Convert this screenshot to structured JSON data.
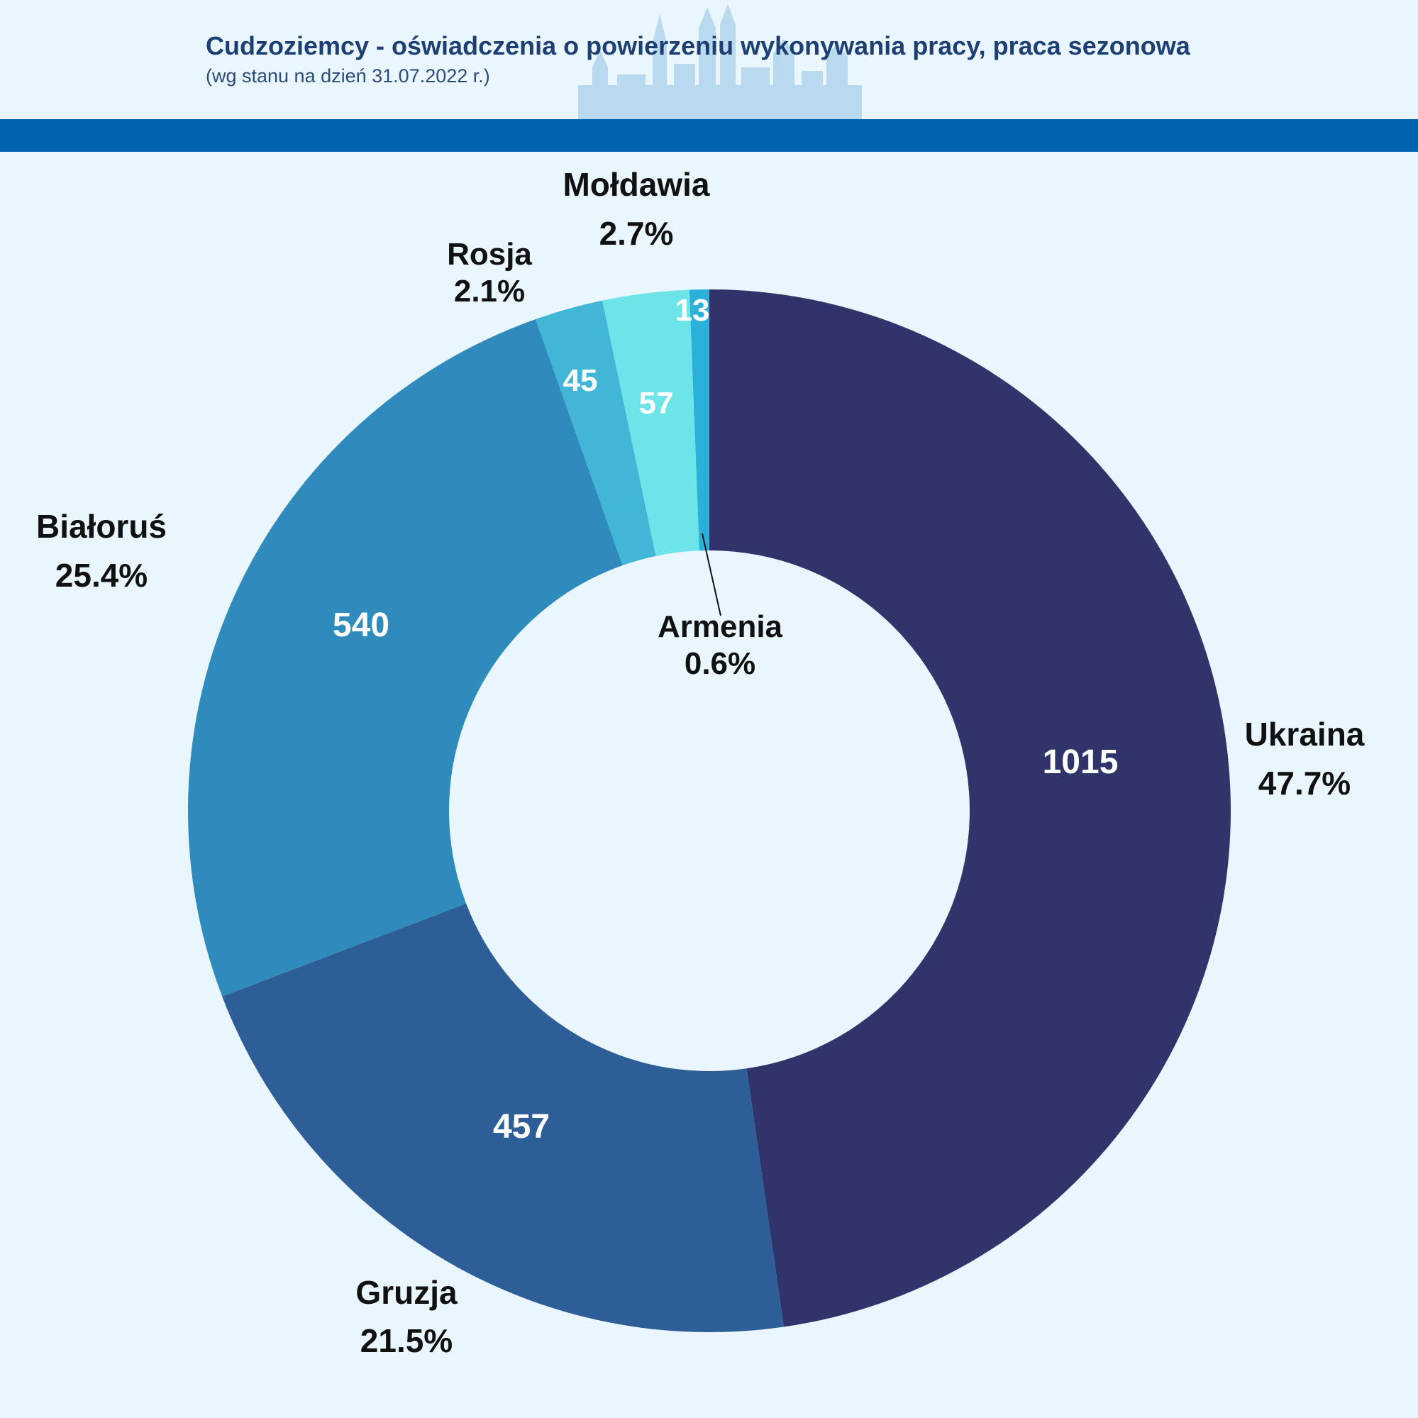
{
  "header": {
    "title": "Cudzoziemcy - oświadczenia o powierzeniu wykonywania pracy, praca sezonowa",
    "subtitle": "(wg stanu na dzień 31.07.2022 r.)"
  },
  "colors": {
    "background": "#eaf6fd",
    "band": "#0064b0",
    "title": "#1d3f73"
  },
  "chart_data": {
    "type": "pie",
    "donut": true,
    "title": "",
    "slices": [
      {
        "name": "Ukraina",
        "value": 1015,
        "percent": "47.7%",
        "color": "#30346b"
      },
      {
        "name": "Gruzja",
        "value": 457,
        "percent": "21.5%",
        "color": "#2e5e97"
      },
      {
        "name": "Białoruś",
        "value": 540,
        "percent": "25.4%",
        "color": "#2e8bbb"
      },
      {
        "name": "Rosja",
        "value": 45,
        "percent": "2.1%",
        "color": "#41b6d6"
      },
      {
        "name": "Mołdawia",
        "value": 57,
        "percent": "2.7%",
        "color": "#6de4e8"
      },
      {
        "name": "Armenia",
        "value": 13,
        "percent": "0.6%",
        "color": "#2ab1d9"
      }
    ]
  }
}
